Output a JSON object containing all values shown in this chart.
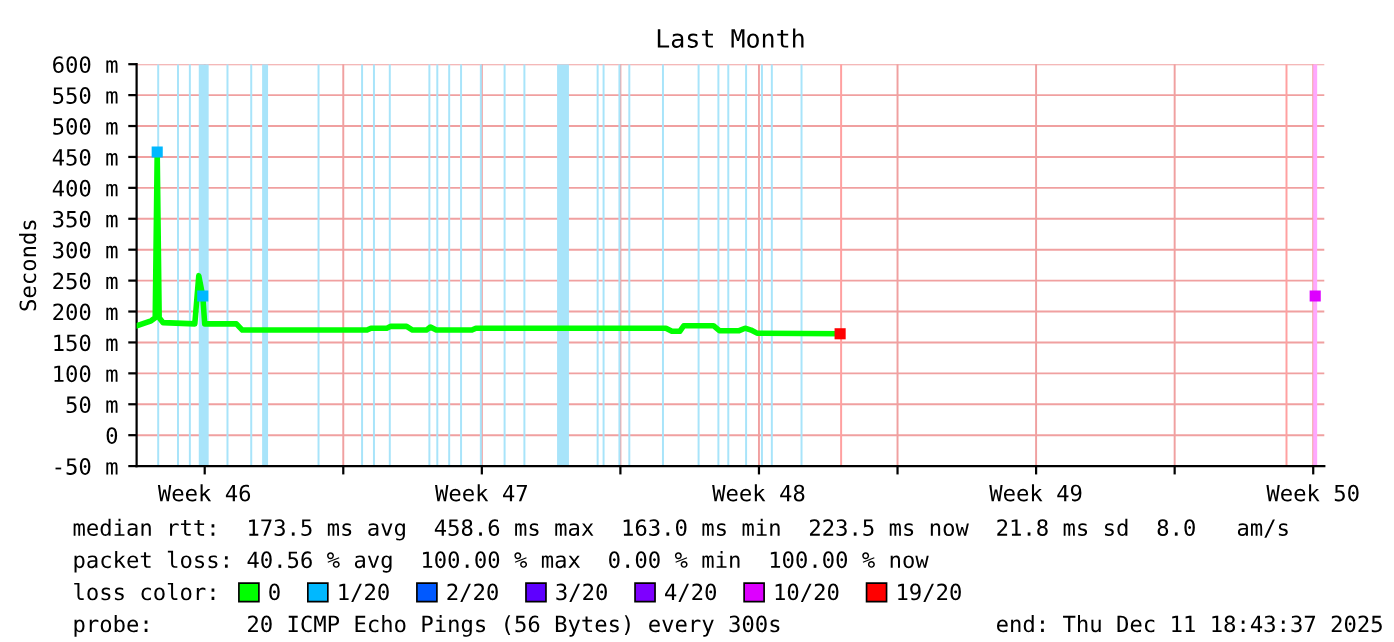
{
  "chart_data": {
    "type": "line",
    "title": "Last Month",
    "ylabel": "Seconds",
    "legend_title": "loss color:",
    "legend": "bottom",
    "grid": true,
    "marker": "none",
    "line_style": "solid",
    "xlim": [
      "2025-11-11T18:43",
      "2025-12-11T18:43"
    ],
    "ylim": [
      -50,
      600
    ],
    "yticks": [
      {
        "value": -50,
        "label": "-50 m"
      },
      0,
      {
        "value": 50,
        "label": "50 m"
      },
      {
        "value": 100,
        "label": "100 m"
      },
      {
        "value": 150,
        "label": "150 m"
      },
      {
        "value": 200,
        "label": "200 m"
      },
      {
        "value": 250,
        "label": "250 m"
      },
      {
        "value": 300,
        "label": "300 m"
      },
      {
        "value": 350,
        "label": "350 m"
      },
      {
        "value": 400,
        "label": "400 m"
      },
      {
        "value": 450,
        "label": "450 m"
      },
      {
        "value": 500,
        "label": "500 m"
      },
      {
        "value": 550,
        "label": "550 m"
      },
      {
        "value": 600,
        "label": "600 m"
      }
    ],
    "xticks": [
      {
        "value": "2025-11-13T12:00",
        "label": "Week 46"
      },
      {
        "value": "2025-11-17T00:00",
        "label": null
      },
      {
        "value": "2025-11-20T12:00",
        "label": "Week 47"
      },
      {
        "value": "2025-11-24T00:00",
        "label": null
      },
      {
        "value": "2025-11-27T12:00",
        "label": "Week 48"
      },
      {
        "value": "2025-12-01T00:00",
        "label": null
      },
      {
        "value": "2025-12-04T12:00",
        "label": "Week 49"
      },
      {
        "value": "2025-12-08T00:00",
        "label": null
      },
      {
        "value": "2025-12-11T12:00",
        "label": "Week 50"
      }
    ],
    "series": [
      {
        "name": "0",
        "color": "#00ff00",
        "x": [
          "2025-11-11T19:00",
          "2025-11-12T03:30",
          "2025-11-12T06:00",
          "2025-11-12T07:12",
          "2025-11-12T08:24",
          "2025-11-12T10:48",
          "2025-11-13T06:00",
          "2025-11-13T08:24",
          "2025-11-13T10:48",
          "2025-11-13T12:00",
          "2025-11-14T07:12",
          "2025-11-14T10:48",
          "2025-11-17T14:24",
          "2025-11-17T16:48",
          "2025-11-18T02:24",
          "2025-11-18T04:48",
          "2025-11-18T14:24",
          "2025-11-18T18:00",
          "2025-11-19T02:24",
          "2025-11-19T04:48",
          "2025-11-19T08:24",
          "2025-11-20T06:00",
          "2025-11-20T08:24",
          "2025-11-25T03:36",
          "2025-11-25T07:12",
          "2025-11-25T12:00",
          "2025-11-25T14:24",
          "2025-11-26T08:24",
          "2025-11-26T12:00",
          "2025-11-27T00:00",
          "2025-11-27T03:36",
          "2025-11-27T07:12",
          "2025-11-27T10:48",
          "2025-11-29T13:12"
        ],
        "values": [
          177,
          185,
          190,
          458,
          190,
          182,
          180,
          258,
          225,
          180,
          180,
          170,
          170,
          173,
          173,
          176,
          176,
          170,
          170,
          175,
          170,
          170,
          173,
          173,
          168,
          168,
          177,
          177,
          169,
          169,
          173,
          170,
          165,
          164
        ]
      },
      {
        "name": "1/20",
        "color": "#00b8ff",
        "type": "scatter",
        "marker": "square",
        "x": [
          "2025-11-12T07:12",
          "2025-11-13T10:48"
        ],
        "values": [
          458,
          225
        ]
      },
      {
        "name": "2/20",
        "color": "#0059ff",
        "type": "scatter"
      },
      {
        "name": "3/20",
        "color": "#5e00ff",
        "type": "scatter"
      },
      {
        "name": "4/20",
        "color": "#7e00ff",
        "type": "scatter"
      },
      {
        "name": "10/20",
        "color": "#dd00ff",
        "type": "scatter",
        "marker": "square",
        "x": [
          "2025-12-11T13:12"
        ],
        "values": [
          225
        ]
      },
      {
        "name": "19/20",
        "color": "#ff0000",
        "type": "scatter",
        "marker": "square",
        "x": [
          "2025-11-29T13:12"
        ],
        "values": [
          164
        ]
      }
    ],
    "bands": [
      {
        "axis": "x",
        "from": "2025-11-12T07:12",
        "to": "2025-11-12T08:24",
        "color": "#a8e4fa"
      },
      {
        "axis": "x",
        "from": "2025-11-12T19:12",
        "to": "2025-11-12T20:24",
        "color": "#a8e4fa"
      },
      {
        "axis": "x",
        "from": "2025-11-13T02:24",
        "to": "2025-11-13T03:36",
        "color": "#a8e4fa"
      },
      {
        "axis": "x",
        "from": "2025-11-13T08:24",
        "to": "2025-11-13T14:24",
        "color": "#a8e4fa"
      },
      {
        "axis": "x",
        "from": "2025-11-14T01:12",
        "to": "2025-11-14T02:24",
        "color": "#a8e4fa"
      },
      {
        "axis": "x",
        "from": "2025-11-14T15:36",
        "to": "2025-11-14T16:48",
        "color": "#a8e4fa"
      },
      {
        "axis": "x",
        "from": "2025-11-14T22:48",
        "to": "2025-11-15T02:24",
        "color": "#a8e4fa"
      },
      {
        "axis": "x",
        "from": "2025-11-16T08:24",
        "to": "2025-11-16T09:36",
        "color": "#a8e4fa"
      },
      {
        "axis": "x",
        "from": "2025-11-17T10:48",
        "to": "2025-11-17T12:00",
        "color": "#a8e4fa"
      },
      {
        "axis": "x",
        "from": "2025-11-17T18:00",
        "to": "2025-11-17T19:12",
        "color": "#a8e4fa"
      },
      {
        "axis": "x",
        "from": "2025-11-18T03:36",
        "to": "2025-11-18T04:48",
        "color": "#a8e4fa"
      },
      {
        "axis": "x",
        "from": "2025-11-19T03:36",
        "to": "2025-11-19T04:48",
        "color": "#a8e4fa"
      },
      {
        "axis": "x",
        "from": "2025-11-19T08:24",
        "to": "2025-11-19T09:36",
        "color": "#a8e4fa"
      },
      {
        "axis": "x",
        "from": "2025-11-19T15:36",
        "to": "2025-11-19T16:48",
        "color": "#a8e4fa"
      },
      {
        "axis": "x",
        "from": "2025-11-19T22:48",
        "to": "2025-11-20T00:00",
        "color": "#a8e4fa"
      },
      {
        "axis": "x",
        "from": "2025-11-20T10:48",
        "to": "2025-11-20T12:00",
        "color": "#a8e4fa"
      },
      {
        "axis": "x",
        "from": "2025-11-21T01:12",
        "to": "2025-11-21T02:24",
        "color": "#a8e4fa"
      },
      {
        "axis": "x",
        "from": "2025-11-21T13:12",
        "to": "2025-11-21T14:24",
        "color": "#a8e4fa"
      },
      {
        "axis": "x",
        "from": "2025-11-22T09:36",
        "to": "2025-11-22T16:48",
        "color": "#a8e4fa"
      },
      {
        "axis": "x",
        "from": "2025-11-23T09:36",
        "to": "2025-11-23T10:48",
        "color": "#a8e4fa"
      },
      {
        "axis": "x",
        "from": "2025-11-23T13:12",
        "to": "2025-11-23T14:24",
        "color": "#a8e4fa"
      },
      {
        "axis": "x",
        "from": "2025-11-23T22:48",
        "to": "2025-11-24T00:00",
        "color": "#a8e4fa"
      },
      {
        "axis": "x",
        "from": "2025-11-24T04:48",
        "to": "2025-11-24T06:00",
        "color": "#a8e4fa"
      },
      {
        "axis": "x",
        "from": "2025-11-25T01:12",
        "to": "2025-11-25T02:24",
        "color": "#a8e4fa"
      },
      {
        "axis": "x",
        "from": "2025-11-25T22:48",
        "to": "2025-11-26T00:00",
        "color": "#a8e4fa"
      },
      {
        "axis": "x",
        "from": "2025-11-26T10:48",
        "to": "2025-11-26T12:00",
        "color": "#a8e4fa"
      },
      {
        "axis": "x",
        "from": "2025-11-26T16:48",
        "to": "2025-11-26T18:00",
        "color": "#a8e4fa"
      },
      {
        "axis": "x",
        "from": "2025-11-27T03:36",
        "to": "2025-11-27T04:48",
        "color": "#a8e4fa"
      },
      {
        "axis": "x",
        "from": "2025-11-27T13:12",
        "to": "2025-11-27T14:24",
        "color": "#a8e4fa"
      },
      {
        "axis": "x",
        "from": "2025-11-27T19:12",
        "to": "2025-11-27T20:24",
        "color": "#a8e4fa"
      },
      {
        "axis": "x",
        "from": "2025-11-28T13:12",
        "to": "2025-11-28T14:24",
        "color": "#a8e4fa"
      },
      {
        "axis": "x",
        "from": "2025-11-29T13:12",
        "to": "2025-11-29T14:24",
        "color": "#ffa0a0"
      },
      {
        "axis": "x",
        "from": "2025-12-10T19:12",
        "to": "2025-12-10T20:24",
        "color": "#ffa0a0"
      },
      {
        "axis": "x",
        "from": "2025-12-11T12:00",
        "to": "2025-12-11T14:24",
        "color": "#ffa8ff"
      }
    ],
    "annotations": [
      "median rtt:  173.5 ms avg  458.6 ms max  163.0 ms min  223.5 ms now  21.8 ms sd  8.0   am/s",
      "packet loss: 40.56 % avg  100.00 % max  0.00 % min  100.00 % now",
      "probe:       20 ICMP Echo Pings (56 Bytes) every 300s                end: Thu Dec 11 18:43:37 2025"
    ]
  }
}
